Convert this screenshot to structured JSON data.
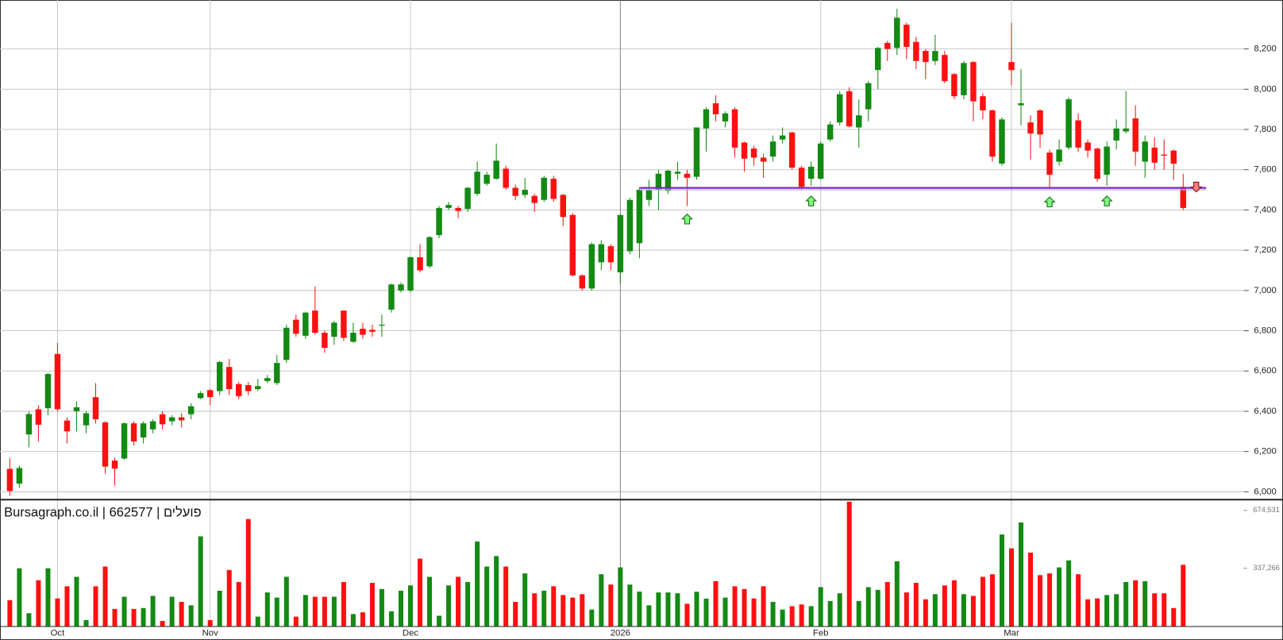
{
  "chart_data": {
    "type": "candlestick",
    "title": "Bursagraph.co.il | 662577 | פועלים",
    "categories": [
      null,
      null,
      null,
      null,
      null,
      "Oct",
      null,
      null,
      null,
      null,
      null,
      null,
      null,
      null,
      null,
      null,
      null,
      null,
      null,
      null,
      null,
      "Nov",
      null,
      null,
      null,
      null,
      null,
      null,
      null,
      null,
      null,
      null,
      null,
      null,
      null,
      null,
      null,
      null,
      null,
      null,
      null,
      null,
      "Dec",
      null,
      null,
      null,
      null,
      null,
      null,
      null,
      null,
      null,
      null,
      null,
      null,
      null,
      null,
      null,
      null,
      null,
      null,
      null,
      null,
      null,
      "2026",
      null,
      null,
      null,
      null,
      null,
      null,
      null,
      null,
      null,
      null,
      null,
      null,
      null,
      null,
      null,
      null,
      null,
      null,
      null,
      null,
      "Feb",
      null,
      null,
      null,
      null,
      null,
      null,
      null,
      null,
      null,
      null,
      null,
      null,
      null,
      null,
      null,
      null,
      null,
      null,
      null,
      "Mar",
      null,
      null,
      null,
      null,
      null,
      null,
      null,
      null,
      null,
      null,
      null,
      null,
      null,
      null,
      null,
      null,
      null,
      null
    ],
    "open": [
      6114,
      6040,
      6285,
      6410,
      6415,
      6685,
      6354,
      6400,
      6330,
      6470,
      6345,
      6155,
      6165,
      6340,
      6270,
      6310,
      6385,
      6350,
      6370,
      6385,
      6465,
      6505,
      6500,
      6620,
      6535,
      6530,
      6510,
      6550,
      6540,
      6655,
      6855,
      6775,
      6900,
      6790,
      6770,
      6900,
      6745,
      6810,
      6805,
      6825,
      6905,
      7000,
      7000,
      7165,
      7120,
      7275,
      7410,
      7410,
      7405,
      7480,
      7530,
      7555,
      7605,
      7510,
      7475,
      7470,
      7450,
      7555,
      7475,
      7375,
      7075,
      7010,
      7140,
      7220,
      7090,
      7195,
      7235,
      7450,
      7500,
      7495,
      7580,
      7580,
      7565,
      7805,
      7930,
      7840,
      7900,
      7735,
      7705,
      7660,
      7665,
      7750,
      7785,
      7610,
      7555,
      7555,
      7750,
      7835,
      7990,
      7810,
      7900,
      8095,
      8230,
      8205,
      8320,
      8235,
      8190,
      8140,
      8170,
      8075,
      7970,
      8135,
      7965,
      7895,
      7630,
      8135,
      7920,
      7835,
      7895,
      7685,
      7640,
      7710,
      7845,
      7735,
      7705,
      7575,
      7745,
      7790,
      7855,
      7640,
      7710,
      7675,
      7695,
      7515
    ],
    "high": [
      6167,
      6130,
      6400,
      6430,
      6590,
      6740,
      6370,
      6450,
      6400,
      6540,
      6350,
      6170,
      6345,
      6350,
      6350,
      6360,
      6400,
      6380,
      6390,
      6440,
      6500,
      6510,
      6650,
      6660,
      6545,
      6545,
      6560,
      6580,
      6680,
      6830,
      6880,
      6895,
      7020,
      6800,
      6850,
      6900,
      6840,
      6840,
      6830,
      6880,
      7035,
      7040,
      7170,
      7230,
      7270,
      7420,
      7440,
      7420,
      7515,
      7640,
      7590,
      7730,
      7620,
      7525,
      7560,
      7480,
      7570,
      7570,
      7480,
      7385,
      7080,
      7240,
      7250,
      7230,
      7380,
      7460,
      7510,
      7550,
      7600,
      7600,
      7640,
      7600,
      7810,
      7910,
      7970,
      7890,
      7910,
      7740,
      7720,
      7680,
      7770,
      7810,
      7790,
      7620,
      7640,
      7740,
      7840,
      7990,
      8010,
      7950,
      8040,
      8210,
      8240,
      8400,
      8330,
      8260,
      8200,
      8270,
      8190,
      8080,
      8140,
      8140,
      7980,
      7900,
      7860,
      8330,
      8100,
      7870,
      7900,
      7700,
      7750,
      7960,
      7880,
      7750,
      7710,
      7740,
      7850,
      7990,
      7920,
      7770,
      7760,
      7750,
      7700,
      7580
    ],
    "low": [
      5980,
      6020,
      6220,
      6250,
      6380,
      6400,
      6240,
      6300,
      6290,
      6340,
      6090,
      6030,
      6160,
      6230,
      6240,
      6290,
      6310,
      6330,
      6320,
      6360,
      6460,
      6430,
      6480,
      6480,
      6460,
      6480,
      6500,
      6540,
      6530,
      6640,
      6770,
      6760,
      6780,
      6690,
      6730,
      6750,
      6740,
      6760,
      6770,
      6770,
      6890,
      6990,
      6990,
      7090,
      7110,
      7260,
      7400,
      7360,
      7390,
      7470,
      7520,
      7550,
      7500,
      7450,
      7460,
      7390,
      7440,
      7440,
      7320,
      7070,
      7000,
      7000,
      7100,
      7100,
      7030,
      7180,
      7160,
      7420,
      7400,
      7480,
      7550,
      7420,
      7550,
      7690,
      7840,
      7810,
      7660,
      7590,
      7620,
      7560,
      7640,
      7730,
      7600,
      7500,
      7520,
      7550,
      7740,
      7820,
      7810,
      7710,
      7840,
      8000,
      8140,
      8170,
      8150,
      8100,
      8050,
      8120,
      8030,
      7950,
      7950,
      7840,
      7850,
      7640,
      7620,
      8020,
      7820,
      7650,
      7710,
      7505,
      7620,
      7700,
      7690,
      7660,
      7540,
      7520,
      7700,
      7780,
      7620,
      7560,
      7600,
      7600,
      7550,
      7400
    ],
    "close": [
      6004,
      6118,
      6386,
      6333,
      6585,
      6410,
      6300,
      6420,
      6390,
      6360,
      6125,
      6115,
      6340,
      6250,
      6340,
      6350,
      6335,
      6370,
      6355,
      6425,
      6490,
      6470,
      6645,
      6510,
      6475,
      6500,
      6525,
      6565,
      6640,
      6815,
      6785,
      6890,
      6790,
      6715,
      6840,
      6765,
      6790,
      6780,
      6795,
      6830,
      7030,
      7030,
      7165,
      7100,
      7265,
      7410,
      7425,
      7395,
      7510,
      7590,
      7575,
      7645,
      7510,
      7470,
      7500,
      7435,
      7560,
      7455,
      7365,
      7075,
      7010,
      7230,
      7230,
      7140,
      7375,
      7450,
      7500,
      7500,
      7580,
      7595,
      7590,
      7560,
      7810,
      7900,
      7875,
      7880,
      7710,
      7655,
      7660,
      7640,
      7740,
      7770,
      7610,
      7515,
      7615,
      7730,
      7825,
      7975,
      7815,
      7870,
      8030,
      8205,
      8200,
      8355,
      8210,
      8140,
      8135,
      8190,
      8040,
      7965,
      8130,
      7940,
      7895,
      7665,
      7850,
      8095,
      7930,
      7780,
      7775,
      7575,
      7700,
      7950,
      7710,
      7695,
      7555,
      7715,
      7805,
      7805,
      7690,
      7740,
      7635,
      7670,
      7630,
      7410
    ],
    "volume": [
      151000,
      337000,
      75000,
      267000,
      337000,
      161000,
      232000,
      287000,
      35000,
      232000,
      347000,
      100000,
      171000,
      100000,
      105000,
      176000,
      30000,
      171000,
      141000,
      121000,
      523000,
      35000,
      206000,
      327000,
      257000,
      624000,
      55000,
      196000,
      166000,
      287000,
      55000,
      181000,
      171000,
      171000,
      171000,
      257000,
      70000,
      80000,
      252000,
      216000,
      86000,
      206000,
      237000,
      393000,
      287000,
      60000,
      237000,
      287000,
      257000,
      493000,
      347000,
      408000,
      347000,
      141000,
      307000,
      191000,
      206000,
      232000,
      181000,
      166000,
      186000,
      96000,
      302000,
      242000,
      342000,
      242000,
      201000,
      121000,
      196000,
      196000,
      191000,
      130000,
      200000,
      160000,
      262000,
      166000,
      232000,
      216000,
      161000,
      232000,
      141000,
      96000,
      116000,
      126000,
      116000,
      227000,
      146000,
      191000,
      725000,
      146000,
      227000,
      211000,
      257000,
      378000,
      196000,
      252000,
      156000,
      186000,
      237000,
      267000,
      186000,
      176000,
      287000,
      302000,
      534000,
      453000,
      604000,
      428000,
      297000,
      307000,
      342000,
      383000,
      302000,
      156000,
      161000,
      181000,
      186000,
      257000,
      267000,
      262000,
      191000,
      191000,
      105000,
      357000
    ],
    "up_color": "#138a13",
    "down_color": "#ff1010",
    "ylim": [
      5963,
      8443
    ],
    "yticks": [
      {
        "value": 6000,
        "label": "6,000"
      },
      {
        "value": 6200,
        "label": "6,200"
      },
      {
        "value": 6400,
        "label": "6,400"
      },
      {
        "value": 6600,
        "label": "6,600"
      },
      {
        "value": 6800,
        "label": "6,800"
      },
      {
        "value": 7000,
        "label": "7,000"
      },
      {
        "value": 7200,
        "label": "7,200"
      },
      {
        "value": 7400,
        "label": "7,400"
      },
      {
        "value": 7600,
        "label": "7,600"
      },
      {
        "value": 7800,
        "label": "7,800"
      },
      {
        "value": 8000,
        "label": "8,000"
      },
      {
        "value": 8200,
        "label": "8,200"
      }
    ],
    "volume_ylim": [
      0,
      730000
    ],
    "volume_ticks": [
      {
        "value": 337266,
        "label": "337,266"
      },
      {
        "value": 674531,
        "label": "674,531"
      }
    ],
    "support": {
      "value": 7510,
      "from": 66,
      "color": "#7a1fe0"
    },
    "signals": [
      {
        "index": 71,
        "direction": "up"
      },
      {
        "index": 84,
        "direction": "up"
      },
      {
        "index": 109,
        "direction": "up"
      },
      {
        "index": 115,
        "direction": "up"
      },
      {
        "index": 123,
        "direction": "down"
      }
    ],
    "grid": true
  }
}
